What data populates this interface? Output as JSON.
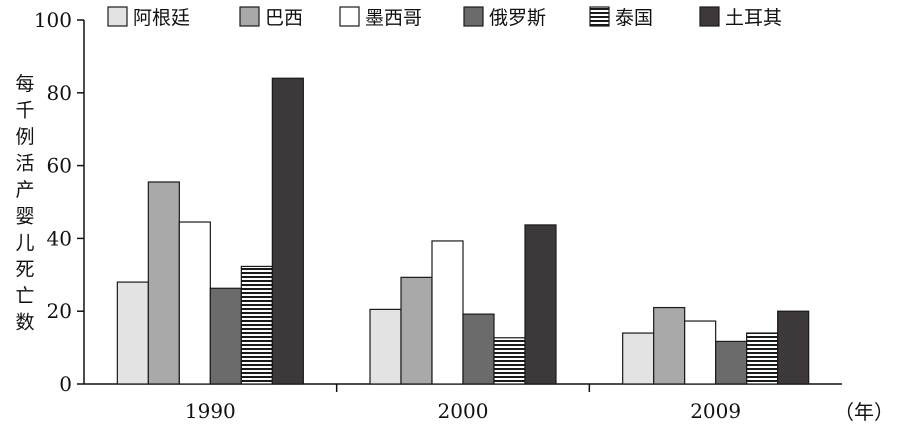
{
  "chart_data": {
    "type": "bar",
    "categories": [
      "1990",
      "2000",
      "2009"
    ],
    "series": [
      {
        "name": "阿根廷",
        "values": [
          28,
          20.5,
          14
        ],
        "color": "#e3e3e3",
        "pattern": "solid"
      },
      {
        "name": "巴西",
        "values": [
          55.5,
          29.3,
          21
        ],
        "color": "#a9a9a9",
        "pattern": "solid"
      },
      {
        "name": "墨西哥",
        "values": [
          44.5,
          39.3,
          17.3
        ],
        "color": "#ffffff",
        "pattern": "solid"
      },
      {
        "name": "俄罗斯",
        "values": [
          26.3,
          19.2,
          11.7
        ],
        "color": "#6b6b6b",
        "pattern": "solid"
      },
      {
        "name": "泰国",
        "values": [
          32.3,
          12.7,
          14
        ],
        "color": "#ffffff",
        "pattern": "horizontal-stripes"
      },
      {
        "name": "土耳其",
        "values": [
          84,
          43.7,
          20
        ],
        "color": "#3d393a",
        "pattern": "solid"
      }
    ],
    "ylabel": "每千例活产婴儿死亡数",
    "xunit": "（年）",
    "ylim": [
      0,
      100
    ],
    "yticks": [
      0,
      20,
      40,
      60,
      80,
      100
    ],
    "grid": false,
    "legend_position": "top"
  }
}
